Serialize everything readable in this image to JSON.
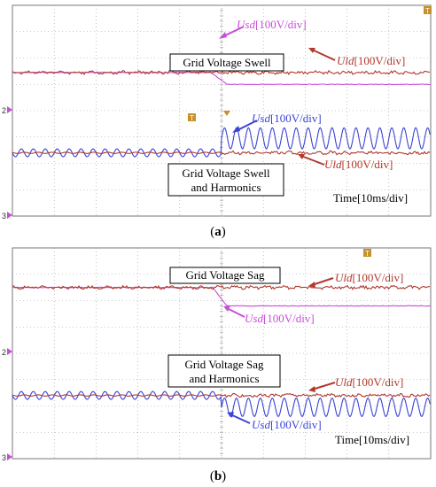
{
  "colors": {
    "uld": "#b03a2e",
    "usd_a": "#c84dd8",
    "usd_b": "#3b44d4",
    "usd_b_top": "#c84dd8",
    "harm": "#5a4fd0",
    "grid": "#9a9a9a",
    "marker": "#c8902a"
  },
  "chart_data": [
    {
      "type": "line",
      "caption_paren_open": "(",
      "caption_letter": "a",
      "caption_paren_close": ")",
      "annotations": {
        "top_box": "Grid Voltage Swell",
        "bottom_box_line1": "Grid Voltage Swell",
        "bottom_box_line2": "and Harmonics",
        "usd_top_sym": "Usd",
        "usd_top_unit": "[100V/div]",
        "uld_top_sym": "Uld",
        "uld_top_unit": "[100V/div]",
        "usd_bot_sym": "Usd",
        "usd_bot_unit": "[100V/div]",
        "uld_bot_sym": "Uld",
        "uld_bot_unit": "[100V/div]",
        "time": "Time[10ms/div]"
      },
      "channel_markers": [
        "2",
        "3"
      ],
      "x_divisions": 10,
      "y_divisions": 8,
      "event_division": 5,
      "series": [
        {
          "name": "Usd",
          "trace": "top",
          "before_div": 5.45,
          "after_div": 5.0,
          "ripple_div": 0.0
        },
        {
          "name": "Uld",
          "trace": "top",
          "before_div": 5.45,
          "after_div": 5.45,
          "ripple_div": 0.05
        },
        {
          "name": "Usd",
          "trace": "bottom",
          "before_amp_div": 0.15,
          "after_amp_div": 0.4,
          "cycles_per_div": 3.5
        },
        {
          "name": "Uld",
          "trace": "bottom",
          "before_div": 2.4,
          "after_div": 2.4,
          "ripple_div": 0.05
        }
      ]
    },
    {
      "type": "line",
      "caption_paren_open": "(",
      "caption_letter": "b",
      "caption_paren_close": ")",
      "annotations": {
        "top_box": "Grid Voltage Sag",
        "bottom_box_line1": "Grid Voltage Sag",
        "bottom_box_line2": "and Harmonics",
        "usd_top_sym": "Usd",
        "usd_top_unit": "[100V/div]",
        "uld_top_sym": "Uld",
        "uld_top_unit": "[100V/div]",
        "usd_bot_sym": "Usd",
        "usd_bot_unit": "[100V/div]",
        "uld_bot_sym": "Uld",
        "uld_bot_unit": "[100V/div]",
        "time": "Time[10ms/div]"
      },
      "channel_markers": [
        "2",
        "3"
      ],
      "x_divisions": 10,
      "y_divisions": 8,
      "event_division": 5,
      "series": [
        {
          "name": "Usd",
          "trace": "top",
          "before_div": 6.5,
          "after_div": 5.8,
          "ripple_div": 0.0
        },
        {
          "name": "Uld",
          "trace": "top",
          "before_div": 6.5,
          "after_div": 6.5,
          "ripple_div": 0.05
        },
        {
          "name": "Usd",
          "trace": "bottom",
          "before_amp_div": 0.15,
          "after_amp_div": 0.35,
          "cycles_per_div": 3.5
        },
        {
          "name": "Uld",
          "trace": "bottom",
          "before_div": 2.4,
          "after_div": 2.4,
          "ripple_div": 0.05
        }
      ]
    }
  ]
}
